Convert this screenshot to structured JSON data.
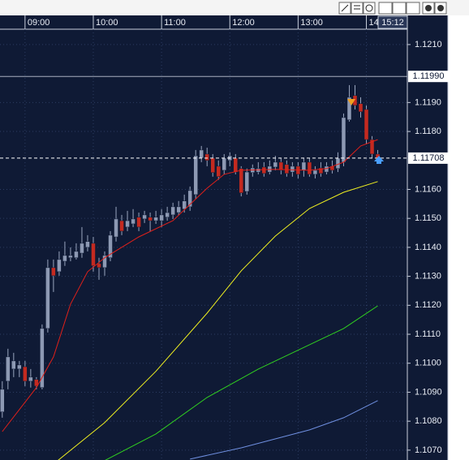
{
  "chart_data": {
    "type": "candlestick",
    "x": [
      520,
      525,
      530,
      535,
      540,
      545,
      550,
      555,
      560,
      565,
      570,
      575,
      580,
      585,
      590,
      595,
      600,
      605,
      610,
      615,
      620,
      625,
      630,
      635,
      640,
      645,
      650,
      655,
      660,
      665,
      670,
      675,
      680,
      685,
      690,
      695,
      700,
      705,
      710,
      715,
      720,
      725,
      730,
      735,
      740,
      745,
      750,
      755,
      760,
      765,
      770,
      775,
      780,
      785,
      790,
      795,
      800,
      805,
      810,
      815,
      820,
      825,
      830,
      835,
      840,
      845,
      850
    ],
    "open": [
      1.10832,
      1.10938,
      1.1098,
      1.1098,
      1.10988,
      1.10938,
      1.10944,
      1.10916,
      1.1112,
      1.1133,
      1.11316,
      1.11352,
      1.11364,
      1.11364,
      1.1138,
      1.114,
      1.11414,
      1.11344,
      1.1133,
      1.11364,
      1.11436,
      1.11492,
      1.1147,
      1.11481,
      1.11504,
      1.11498,
      1.11504,
      1.11492,
      1.11492,
      1.11504,
      1.11512,
      1.1152,
      1.11532,
      1.1154,
      1.11582,
      1.11708,
      1.11722,
      1.11708,
      1.1168,
      1.11666,
      1.117,
      1.11708,
      1.11672,
      1.11593,
      1.11658,
      1.1166,
      1.11677,
      1.1166,
      1.11677,
      1.11694,
      1.11686,
      1.1166,
      1.1168,
      1.11666,
      1.11694,
      1.11652,
      1.11674,
      1.1166,
      1.1168,
      1.11672,
      1.11694,
      1.1184,
      1.11924,
      1.11896,
      1.11876,
      1.11772,
      1.11722
    ],
    "high": [
      1.10938,
      1.1105,
      1.11036,
      1.11008,
      1.11008,
      1.1098,
      1.10952,
      1.11134,
      1.11358,
      1.11358,
      1.11386,
      1.1142,
      1.114,
      1.11414,
      1.1147,
      1.11442,
      1.11436,
      1.11364,
      1.11386,
      1.11456,
      1.1154,
      1.11512,
      1.11526,
      1.11532,
      1.1152,
      1.11526,
      1.1152,
      1.11526,
      1.11532,
      1.1154,
      1.11554,
      1.1156,
      1.11582,
      1.1161,
      1.11736,
      1.1175,
      1.11744,
      1.11722,
      1.117,
      1.11722,
      1.11728,
      1.11722,
      1.1168,
      1.11672,
      1.11686,
      1.11694,
      1.11694,
      1.117,
      1.11716,
      1.11708,
      1.117,
      1.11694,
      1.11694,
      1.11708,
      1.11708,
      1.1168,
      1.11694,
      1.11694,
      1.117,
      1.11728,
      1.11862,
      1.1196,
      1.1196,
      1.11918,
      1.1189,
      1.11784,
      1.11736
    ],
    "low": [
      1.10812,
      1.1091,
      1.10952,
      1.10952,
      1.10921,
      1.10916,
      1.1091,
      1.1091,
      1.11106,
      1.11246,
      1.11302,
      1.11336,
      1.11352,
      1.11358,
      1.11364,
      1.11386,
      1.11316,
      1.11288,
      1.11302,
      1.11352,
      1.1142,
      1.11442,
      1.11456,
      1.1147,
      1.11456,
      1.11484,
      1.11456,
      1.11481,
      1.1147,
      1.11492,
      1.11498,
      1.11512,
      1.1152,
      1.11526,
      1.11568,
      1.11694,
      1.1168,
      1.11644,
      1.11633,
      1.11652,
      1.1168,
      1.11652,
      1.11576,
      1.11582,
      1.11644,
      1.11652,
      1.11644,
      1.11652,
      1.11666,
      1.11652,
      1.11644,
      1.11644,
      1.11638,
      1.11644,
      1.11644,
      1.11638,
      1.11644,
      1.11652,
      1.11655,
      1.1166,
      1.1168,
      1.11834,
      1.11876,
      1.11848,
      1.11756,
      1.11708,
      1.117
    ],
    "close": [
      1.1091,
      1.11022,
      1.11008,
      1.10994,
      1.10938,
      1.10952,
      1.10921,
      1.1112,
      1.1133,
      1.11302,
      1.11358,
      1.11372,
      1.11372,
      1.11386,
      1.11414,
      1.1142,
      1.11336,
      1.1133,
      1.11372,
      1.11442,
      1.11498,
      1.11456,
      1.11492,
      1.11498,
      1.1147,
      1.11512,
      1.11492,
      1.11504,
      1.11512,
      1.1152,
      1.1154,
      1.1154,
      1.1156,
      1.11596,
      1.11716,
      1.11736,
      1.117,
      1.11658,
      1.11644,
      1.11708,
      1.11716,
      1.1166,
      1.11588,
      1.1166,
      1.11674,
      1.11672,
      1.11655,
      1.1168,
      1.11694,
      1.11666,
      1.11655,
      1.1168,
      1.11652,
      1.11694,
      1.11652,
      1.11666,
      1.11655,
      1.1168,
      1.11666,
      1.11708,
      1.11848,
      1.11918,
      1.1189,
      1.11868,
      1.11772,
      1.11722,
      1.11708
    ],
    "up_color": "#8d99b3",
    "down_color": "#c42a20",
    "series": [
      {
        "color": "#e0201a",
        "x": [
          520,
          550,
          565,
          580,
          595,
          610,
          640,
          670,
          700,
          715,
          730,
          760,
          790,
          805,
          820,
          835,
          850
        ],
        "values": [
          1.10764,
          1.10916,
          1.11022,
          1.11204,
          1.11316,
          1.11364,
          1.11436,
          1.11492,
          1.11604,
          1.11652,
          1.11666,
          1.11669,
          1.11666,
          1.11672,
          1.11694,
          1.1175,
          1.11772
        ]
      },
      {
        "color": "#f0f020",
        "x": [
          565,
          610,
          655,
          700,
          730,
          760,
          790,
          820,
          850
        ],
        "values": [
          1.10652,
          1.10795,
          1.10972,
          1.11173,
          1.11319,
          1.11439,
          1.11534,
          1.1159,
          1.11627
        ]
      },
      {
        "color": "#30d020",
        "x": [
          610,
          655,
          700,
          745,
          790,
          820,
          850
        ],
        "values": [
          1.10664,
          1.10756,
          1.10882,
          1.1098,
          1.11064,
          1.1112,
          1.11198
        ]
      },
      {
        "color": "#6f8fe0",
        "x": [
          685,
          730,
          790,
          820,
          850
        ],
        "values": [
          1.10669,
          1.10708,
          1.1077,
          1.10812,
          1.10871
        ]
      }
    ],
    "hlines": [
      {
        "value": 1.1199,
        "label": "1.11990",
        "color": "#a8b0c0",
        "style": "solid"
      },
      {
        "value": 1.11708,
        "label": "1.11708",
        "color": "#ffffff",
        "style": "dashed"
      }
    ],
    "current_time_label": "15:12",
    "xlim": [
      518,
      876
    ],
    "xticks": [
      {
        "value": 540,
        "label": "09:00"
      },
      {
        "value": 600,
        "label": "10:00"
      },
      {
        "value": 660,
        "label": "11:00"
      },
      {
        "value": 720,
        "label": "12:00"
      },
      {
        "value": 780,
        "label": "13:00"
      },
      {
        "value": 840,
        "label": "14"
      }
    ],
    "ylim": [
      1.10666,
      1.12153
    ],
    "yticks": [
      {
        "value": 1.107,
        "label": "1.1070"
      },
      {
        "value": 1.108,
        "label": "1.1080"
      },
      {
        "value": 1.109,
        "label": "1.1090"
      },
      {
        "value": 1.11,
        "label": "1.1100"
      },
      {
        "value": 1.111,
        "label": "1.1110"
      },
      {
        "value": 1.112,
        "label": "1.1120"
      },
      {
        "value": 1.113,
        "label": "1.1130"
      },
      {
        "value": 1.114,
        "label": "1.1140"
      },
      {
        "value": 1.115,
        "label": "1.1150"
      },
      {
        "value": 1.116,
        "label": "1.1160"
      },
      {
        "value": 1.118,
        "label": "1.1180"
      },
      {
        "value": 1.119,
        "label": "1.1190"
      },
      {
        "value": 1.121,
        "label": "1.1210"
      }
    ],
    "grid": true
  }
}
